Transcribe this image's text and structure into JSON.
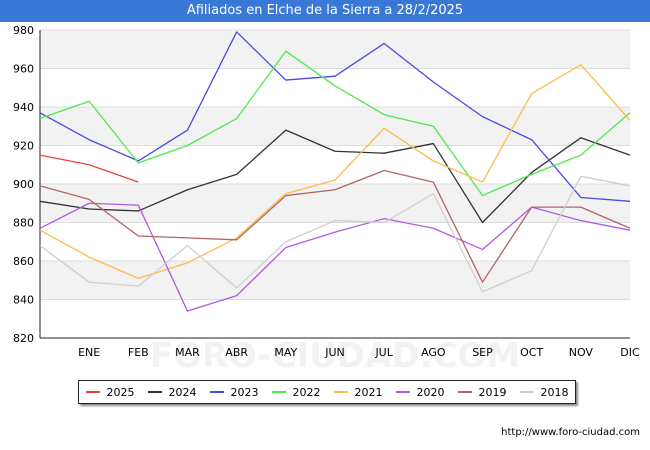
{
  "title": "Afiliados en Elche de la Sierra a 28/2/2025",
  "watermark": "FORO-CIUDAD.COM",
  "source_url": "http://www.foro-ciudad.com",
  "colors": {
    "title_bar": "#3a78d8",
    "band": "#f2f2f2",
    "grid": "#dddddd"
  },
  "chart_data": {
    "type": "line",
    "title": "Afiliados en Elche de la Sierra a 28/2/2025",
    "xlabel": "",
    "ylabel": "",
    "ylim": [
      820,
      980
    ],
    "yticks": [
      820,
      840,
      860,
      880,
      900,
      920,
      940,
      960,
      980
    ],
    "x_tick_labels": [
      "ENE",
      "FEB",
      "MAR",
      "ABR",
      "MAY",
      "JUN",
      "JUL",
      "AGO",
      "SEP",
      "OCT",
      "NOV",
      "DIC"
    ],
    "x_range": [
      0,
      12
    ],
    "grid": true,
    "legend_position": "bottom",
    "series": [
      {
        "name": "2025",
        "color": "#e8413e",
        "x": [
          0,
          1,
          2
        ],
        "values": [
          915,
          910,
          901
        ]
      },
      {
        "name": "2024",
        "color": "#333333",
        "x": [
          0,
          1,
          2,
          3,
          4,
          5,
          6,
          7,
          8,
          9,
          10,
          11,
          12
        ],
        "values": [
          891,
          887,
          886,
          897,
          905,
          928,
          917,
          916,
          921,
          880,
          906,
          924,
          915
        ]
      },
      {
        "name": "2023",
        "color": "#4a4ae6",
        "x": [
          0,
          1,
          2,
          3,
          4,
          5,
          6,
          7,
          8,
          9,
          10,
          11,
          12
        ],
        "values": [
          937,
          923,
          912,
          928,
          979,
          954,
          956,
          973,
          953,
          935,
          923,
          893,
          891
        ]
      },
      {
        "name": "2022",
        "color": "#4fe84f",
        "x": [
          0,
          1,
          2,
          3,
          4,
          5,
          6,
          7,
          8,
          9,
          10,
          11,
          12
        ],
        "values": [
          934,
          943,
          911,
          920,
          934,
          969,
          951,
          936,
          930,
          894,
          905,
          915,
          937
        ]
      },
      {
        "name": "2021",
        "color": "#ffba4a",
        "x": [
          0,
          1,
          2,
          3,
          4,
          5,
          6,
          7,
          8,
          9,
          10,
          11,
          12
        ],
        "values": [
          876,
          862,
          851,
          859,
          872,
          895,
          902,
          929,
          912,
          901,
          947,
          962,
          933
        ]
      },
      {
        "name": "2020",
        "color": "#b25ae6",
        "x": [
          0,
          1,
          2,
          3,
          4,
          5,
          6,
          7,
          8,
          9,
          10,
          11,
          12
        ],
        "values": [
          877,
          890,
          889,
          834,
          842,
          867,
          875,
          882,
          877,
          866,
          888,
          881,
          876
        ]
      },
      {
        "name": "2019",
        "color": "#b26666",
        "x": [
          0,
          1,
          2,
          3,
          4,
          5,
          6,
          7,
          8,
          9,
          10,
          11,
          12
        ],
        "values": [
          899,
          892,
          873,
          872,
          871,
          894,
          897,
          907,
          901,
          849,
          888,
          888,
          877
        ]
      },
      {
        "name": "2018",
        "color": "#cfcfcf",
        "x": [
          0,
          1,
          2,
          3,
          4,
          5,
          6,
          7,
          8,
          9,
          10,
          11,
          12
        ],
        "values": [
          868,
          849,
          847,
          868,
          846,
          870,
          881,
          880,
          895,
          844,
          855,
          904,
          899
        ]
      }
    ]
  }
}
